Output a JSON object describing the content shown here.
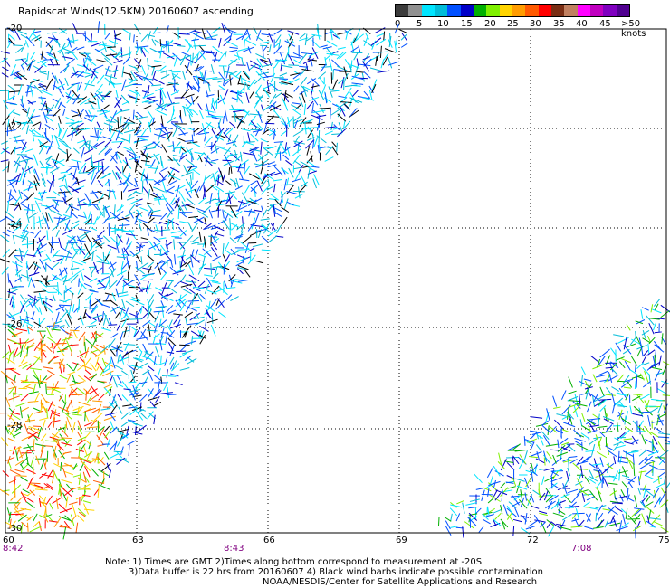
{
  "title": "Rapidscat Winds(12.5KM) 20160607 ascending",
  "legend": {
    "colors": [
      "#3c3c3c",
      "#909090",
      "#00e5ff",
      "#00bcd8",
      "#0050ff",
      "#0000c8",
      "#00b000",
      "#7ff000",
      "#ffd400",
      "#ff9c00",
      "#ff5a00",
      "#ff0000",
      "#7a2e14",
      "#c08060",
      "#ff00ff",
      "#c000c0",
      "#8000c0",
      "#500090"
    ],
    "labels": [
      "0",
      "5",
      "10",
      "15",
      "20",
      "25",
      "30",
      "35",
      "40",
      "45",
      ">50 knots"
    ]
  },
  "axes": {
    "y_ticks": [
      "-20",
      "-22",
      "-24",
      "-26",
      "-28",
      "-30"
    ],
    "x_ticks": [
      "60",
      "63",
      "66",
      "69",
      "72",
      "75"
    ]
  },
  "times": [
    "8:42",
    "8:43",
    "7:08"
  ],
  "notes": [
    "Note: 1) Times are GMT 2)Times along bottom correspond to measurement at -20S",
    "3)Data buffer is 22 hrs from 20160607 4) Black wind barbs indicate possible contamination",
    "NOAA/NESDIS/Center for Satellite Applications and Research"
  ]
}
